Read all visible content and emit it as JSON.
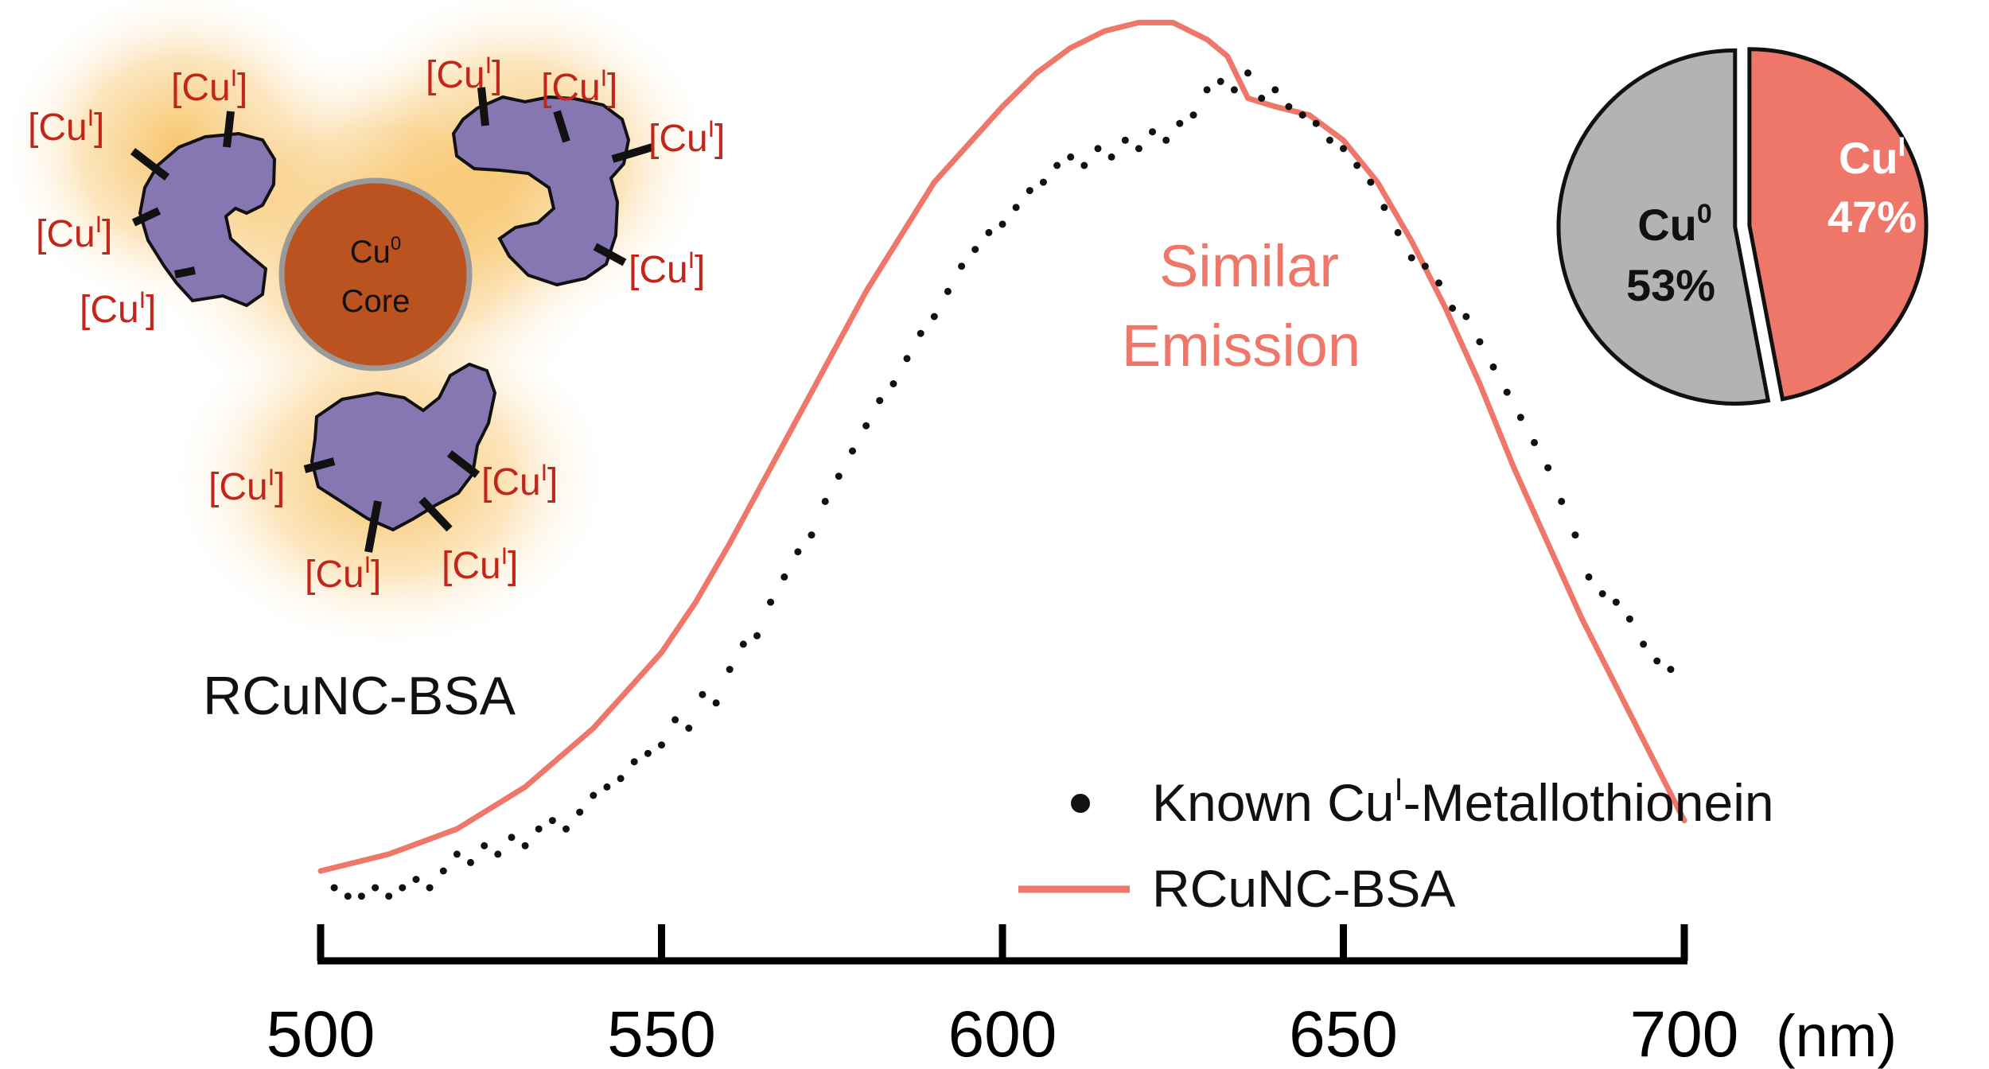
{
  "colors": {
    "salmon": "#ee776a",
    "dots": "#111111",
    "axis": "#000000",
    "protein": "#8677b3",
    "core": "#bb5320",
    "core_ring": "#9a9a9a",
    "glow": "#f6b84a",
    "label_red": "#c2261a",
    "pie_gray": "#b3b3b3",
    "pie_salmon": "#ee776a"
  },
  "icons": {
    "protein_blob": "irregular-protein-shape",
    "core": "copper-core-circle"
  },
  "schematic": {
    "core_label_line1": "Cu",
    "core_label_line1_sup": "0",
    "core_label_line2": "Core",
    "ligand_label_prefix": "[Cu",
    "ligand_label_sup": "I",
    "ligand_label_suffix": "]",
    "title": "RCuNC-BSA"
  },
  "annotation": {
    "line1": "Similar",
    "line2": "Emission"
  },
  "legend": {
    "dots_label_pre": "Known Cu",
    "dots_label_sup": "I",
    "dots_label_post": "-Metallothionein",
    "line_label": "RCuNC-BSA"
  },
  "axis_unit": "(nm)",
  "pie": {
    "cu0_label": "Cu",
    "cu0_sup": "0",
    "cu0_pct": "53%",
    "cu1_label": "Cu",
    "cu1_sup": "I",
    "cu1_pct": "47%"
  },
  "chart_data": [
    {
      "type": "line",
      "xunit": "(nm)",
      "xlim": [
        500,
        700
      ],
      "ylim": [
        0,
        1
      ],
      "xticks": [
        500,
        550,
        600,
        650,
        700
      ],
      "series": [
        {
          "name": "RCuNC-BSA",
          "style": "line",
          "x": [
            500,
            510,
            520,
            530,
            540,
            550,
            555,
            560,
            570,
            580,
            590,
            600,
            605,
            610,
            615,
            620,
            625,
            630,
            633,
            636,
            640,
            645,
            650,
            655,
            660,
            665,
            670,
            675,
            680,
            685,
            690,
            695,
            700
          ],
          "y": [
            0.0,
            0.02,
            0.05,
            0.1,
            0.17,
            0.26,
            0.32,
            0.39,
            0.54,
            0.69,
            0.82,
            0.91,
            0.95,
            0.98,
            1.0,
            1.01,
            1.01,
            0.99,
            0.97,
            0.92,
            0.91,
            0.9,
            0.87,
            0.82,
            0.75,
            0.67,
            0.58,
            0.48,
            0.39,
            0.3,
            0.22,
            0.14,
            0.06
          ]
        },
        {
          "name": "Known CuI-Metallothionein",
          "style": "dots",
          "x": [
            502,
            504,
            506,
            508,
            510,
            512,
            514,
            516,
            518,
            520,
            522,
            524,
            526,
            528,
            530,
            532,
            534,
            536,
            538,
            540,
            542,
            544,
            546,
            548,
            550,
            552,
            554,
            556,
            558,
            560,
            562,
            564,
            566,
            568,
            570,
            572,
            574,
            576,
            578,
            580,
            582,
            584,
            586,
            588,
            590,
            592,
            594,
            596,
            598,
            600,
            602,
            604,
            606,
            608,
            610,
            612,
            614,
            616,
            618,
            620,
            622,
            624,
            626,
            628,
            630,
            632,
            634,
            636,
            638,
            640,
            642,
            644,
            646,
            648,
            650,
            652,
            654,
            656,
            658,
            660,
            662,
            664,
            666,
            668,
            670,
            672,
            674,
            676,
            678,
            680,
            682,
            684,
            686,
            688,
            690,
            692,
            694,
            696,
            698
          ],
          "y": [
            -0.02,
            -0.03,
            -0.03,
            -0.02,
            -0.03,
            -0.02,
            -0.01,
            -0.02,
            0.0,
            0.02,
            0.01,
            0.03,
            0.02,
            0.04,
            0.03,
            0.05,
            0.06,
            0.05,
            0.07,
            0.09,
            0.1,
            0.11,
            0.13,
            0.14,
            0.15,
            0.18,
            0.17,
            0.21,
            0.2,
            0.24,
            0.27,
            0.28,
            0.32,
            0.35,
            0.38,
            0.4,
            0.44,
            0.47,
            0.5,
            0.53,
            0.56,
            0.58,
            0.61,
            0.64,
            0.66,
            0.69,
            0.72,
            0.74,
            0.76,
            0.77,
            0.79,
            0.81,
            0.82,
            0.84,
            0.85,
            0.84,
            0.86,
            0.85,
            0.87,
            0.86,
            0.88,
            0.87,
            0.89,
            0.9,
            0.93,
            0.94,
            0.93,
            0.95,
            0.92,
            0.93,
            0.91,
            0.9,
            0.89,
            0.87,
            0.86,
            0.84,
            0.82,
            0.79,
            0.76,
            0.73,
            0.72,
            0.7,
            0.67,
            0.66,
            0.63,
            0.6,
            0.57,
            0.54,
            0.51,
            0.48,
            0.44,
            0.4,
            0.35,
            0.33,
            0.32,
            0.3,
            0.27,
            0.25,
            0.24
          ]
        }
      ]
    },
    {
      "type": "pie",
      "categories": [
        "Cu0",
        "CuI"
      ],
      "values": [
        53,
        47
      ]
    }
  ]
}
